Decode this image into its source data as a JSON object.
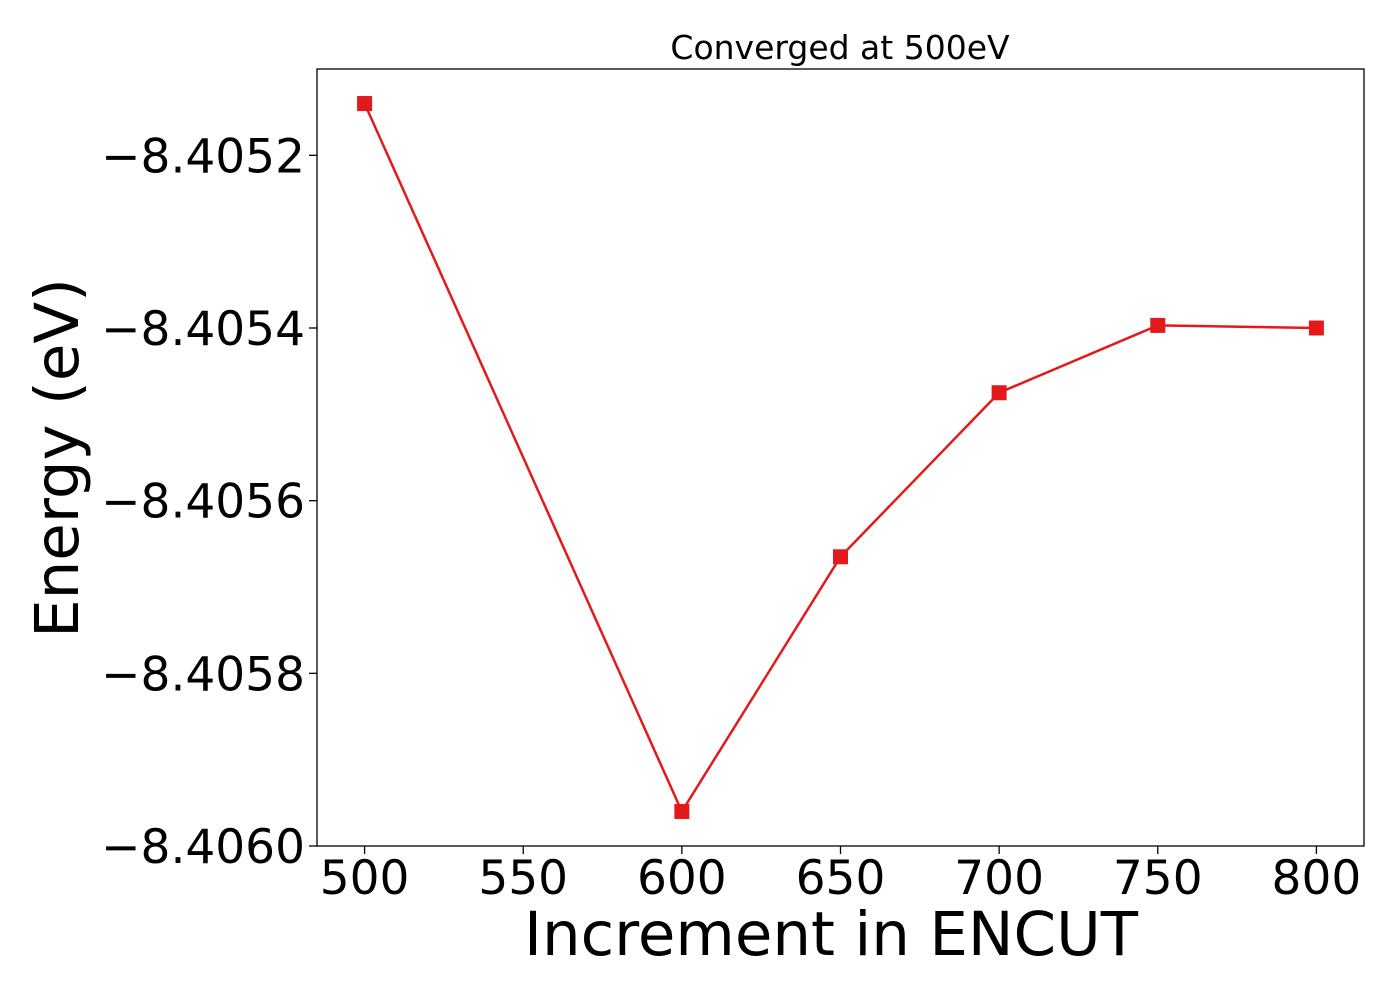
{
  "chart_data": {
    "type": "line",
    "title": "Converged at 500eV",
    "xlabel": "Increment in ENCUT",
    "ylabel": "Energy (eV)",
    "x": [
      500,
      600,
      650,
      700,
      750,
      800
    ],
    "series": [
      {
        "values": [
          -8.40514,
          -8.40596,
          -8.405665,
          -8.405475,
          -8.405397,
          -8.4054
        ],
        "color": "#e31a1c",
        "marker": "square"
      }
    ],
    "xlim": [
      485,
      815
    ],
    "ylim": [
      -8.406,
      -8.4051
    ],
    "x_ticks": [
      500,
      550,
      600,
      650,
      700,
      750,
      800
    ],
    "x_tick_labels": [
      "500",
      "550",
      "600",
      "650",
      "700",
      "750",
      "800"
    ],
    "y_ticks": [
      -8.4052,
      -8.4054,
      -8.4056,
      -8.4058,
      -8.406
    ],
    "y_tick_labels": [
      "−8.4052",
      "−8.4054",
      "−8.4056",
      "−8.4058",
      "−8.4060"
    ],
    "grid": false,
    "legend": "none"
  }
}
